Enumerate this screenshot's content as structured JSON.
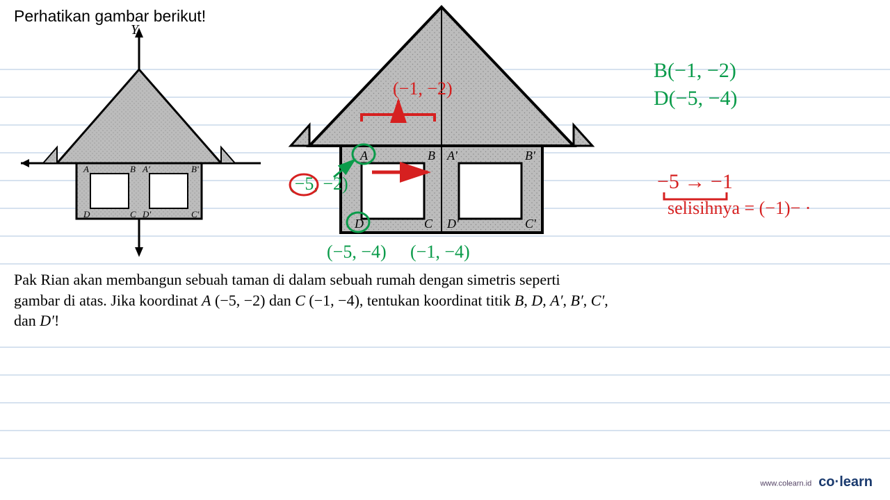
{
  "instruction": "Perhatikan gambar berikut!",
  "y_axis_label": "Y",
  "problem": {
    "line1_a": "Pak Rian akan membangun sebuah taman di dalam sebuah rumah dengan simetris seperti",
    "line2_a": "gambar di atas. Jika koordinat ",
    "A_label": "A",
    "A_coord": " (−5, −2) ",
    "and": "dan ",
    "C_label": "C",
    "C_coord": " (−1, −4),",
    "tail": " tentukan koordinat titik ",
    "B": "B",
    "D": "D",
    "Ap": "A′",
    "Bp": "B′",
    "Cp": "C′",
    "line3": "dan ",
    "Dp": "D′",
    "bang": "!"
  },
  "handwriting": {
    "B_coord": "B(−1, −2)",
    "D_coord": "D(−5, −4)",
    "red_range": "−5  →  −1",
    "red_selisih": "selisihnya  =  (−1)− ·",
    "green_m52": "(−5, −2)",
    "green_m54": "(−5, −4)",
    "green_m14": "(−1, −4)",
    "red_m12": "(−1, −2)"
  },
  "house": {
    "roof_fill": "#a9a9a9",
    "body_fill": "#b5b5b5",
    "axis_color": "#000000",
    "labels": {
      "A": "A",
      "B": "B",
      "Ap": "A'",
      "Bp": "B'",
      "C": "C",
      "D": "D",
      "Cp": "C'",
      "Dp": "D'"
    }
  },
  "ruled": {
    "color": "#c8d8ea",
    "positions": [
      100,
      140,
      180,
      220,
      260,
      300,
      340,
      380,
      500,
      540,
      580,
      620,
      660
    ]
  },
  "footer": {
    "url": "www.colearn.id",
    "brand": "co·learn"
  }
}
